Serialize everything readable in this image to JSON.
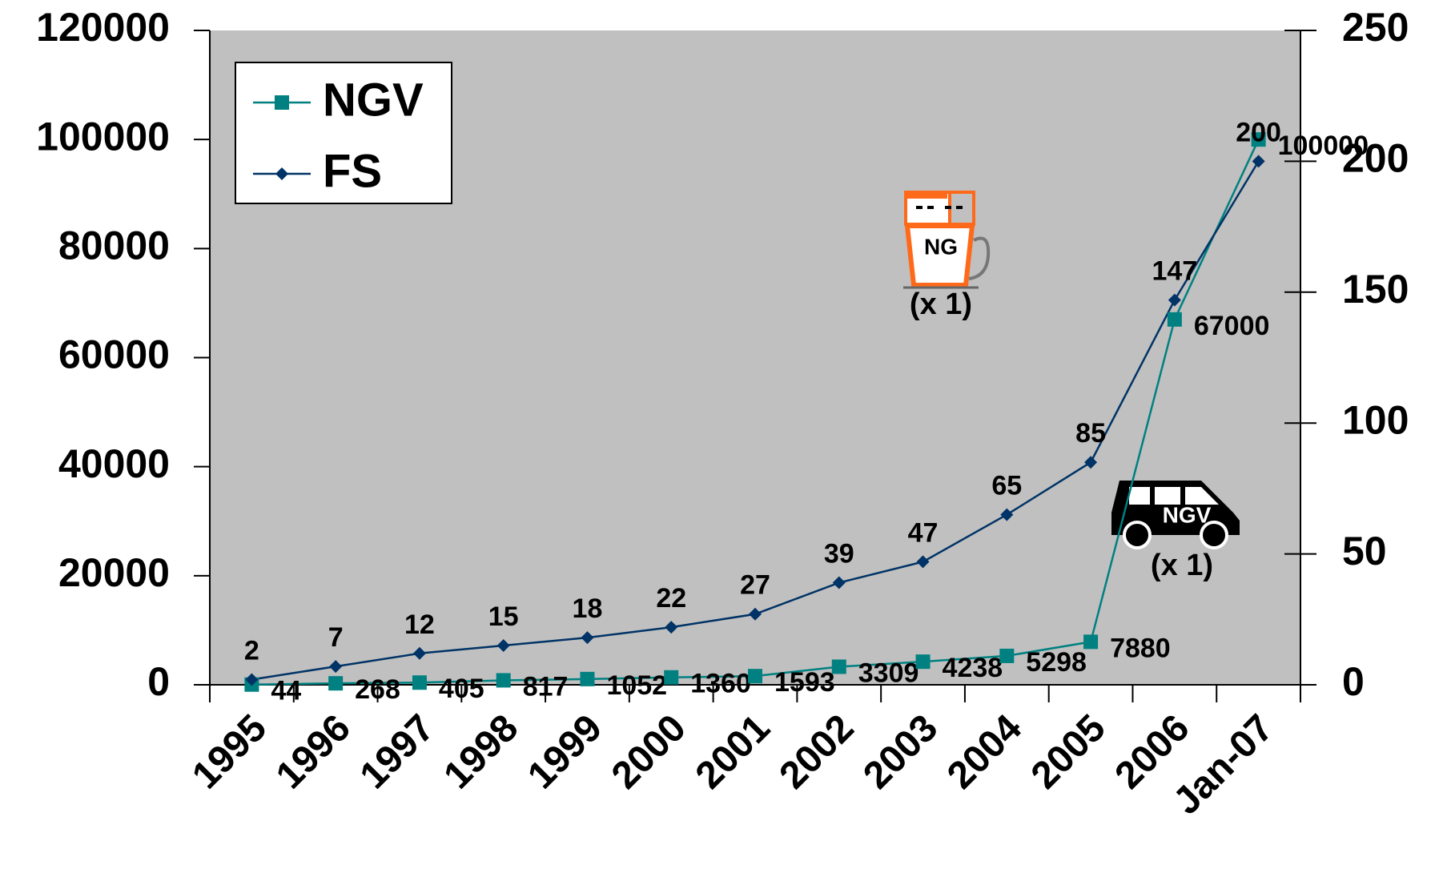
{
  "chart_data": {
    "type": "line",
    "categories": [
      "1995",
      "1996",
      "1997",
      "1998",
      "1999",
      "2000",
      "2001",
      "2002",
      "2003",
      "2004",
      "2005",
      "2006",
      "Jan-07"
    ],
    "series": [
      {
        "name": "NGV",
        "color": "#008080",
        "marker": "square",
        "values": [
          44,
          268,
          405,
          817,
          1052,
          1360,
          1593,
          3309,
          4238,
          5298,
          7880,
          67000,
          100000
        ]
      },
      {
        "name": "FS",
        "color": "#003366",
        "marker": "diamond",
        "axis": "y2",
        "values": [
          2,
          7,
          12,
          15,
          18,
          22,
          27,
          39,
          47,
          65,
          85,
          147,
          200
        ]
      }
    ],
    "ylim": [
      0,
      120000
    ],
    "yticks": [
      0,
      20000,
      40000,
      60000,
      80000,
      100000,
      120000
    ],
    "y2lim": [
      0,
      250
    ],
    "y2ticks": [
      0,
      50,
      100,
      150,
      200,
      250
    ],
    "legend": "upper left",
    "background": "#c0c0c0",
    "grid": false,
    "annotations": [
      "NG",
      "(x 1)",
      "NGV",
      "(x 1)"
    ]
  }
}
